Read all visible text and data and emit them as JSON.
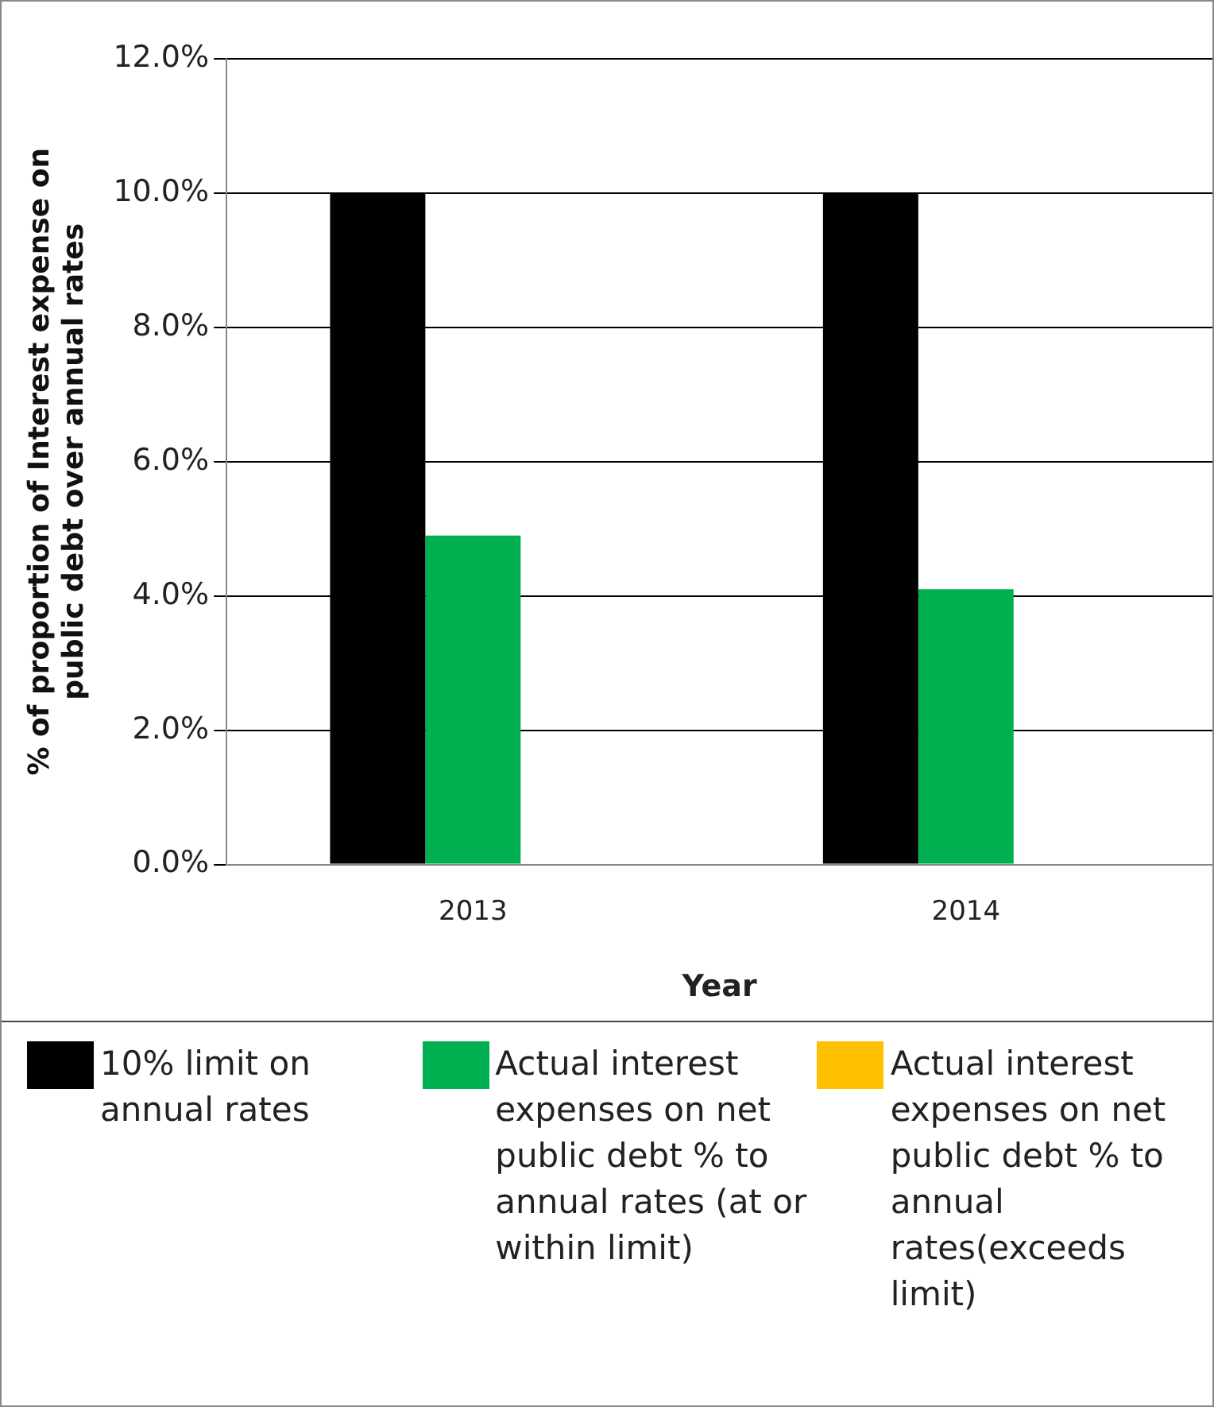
{
  "chart_data": {
    "type": "bar",
    "xlabel": "Year",
    "ylabel": "% of proportion of Interest expense on\npublic debt over annual rates",
    "categories": [
      "2013",
      "2014"
    ],
    "series": [
      {
        "name": "10% limit on annual rates",
        "color": "#000000",
        "values": [
          10,
          10
        ]
      },
      {
        "name": "Actual interest expenses on net public debt % to annual rates (at or within limit)",
        "color": "#00b050",
        "values": [
          4.9,
          4.1
        ]
      },
      {
        "name": "Actual interest expenses on net public debt % to annual rates(exceeds limit)",
        "color": "#ffc000",
        "values": [
          null,
          null
        ]
      }
    ],
    "ylim": [
      0,
      12
    ],
    "yticks": [
      {
        "value": 0,
        "label": "0.0%"
      },
      {
        "value": 2,
        "label": "2.0%"
      },
      {
        "value": 4,
        "label": "4.0%"
      },
      {
        "value": 6,
        "label": "6.0%"
      },
      {
        "value": 8,
        "label": "8.0%"
      },
      {
        "value": 10,
        "label": "10.0%"
      },
      {
        "value": 12,
        "label": "12.0%"
      }
    ],
    "grid": "y",
    "legend": "bottom"
  }
}
